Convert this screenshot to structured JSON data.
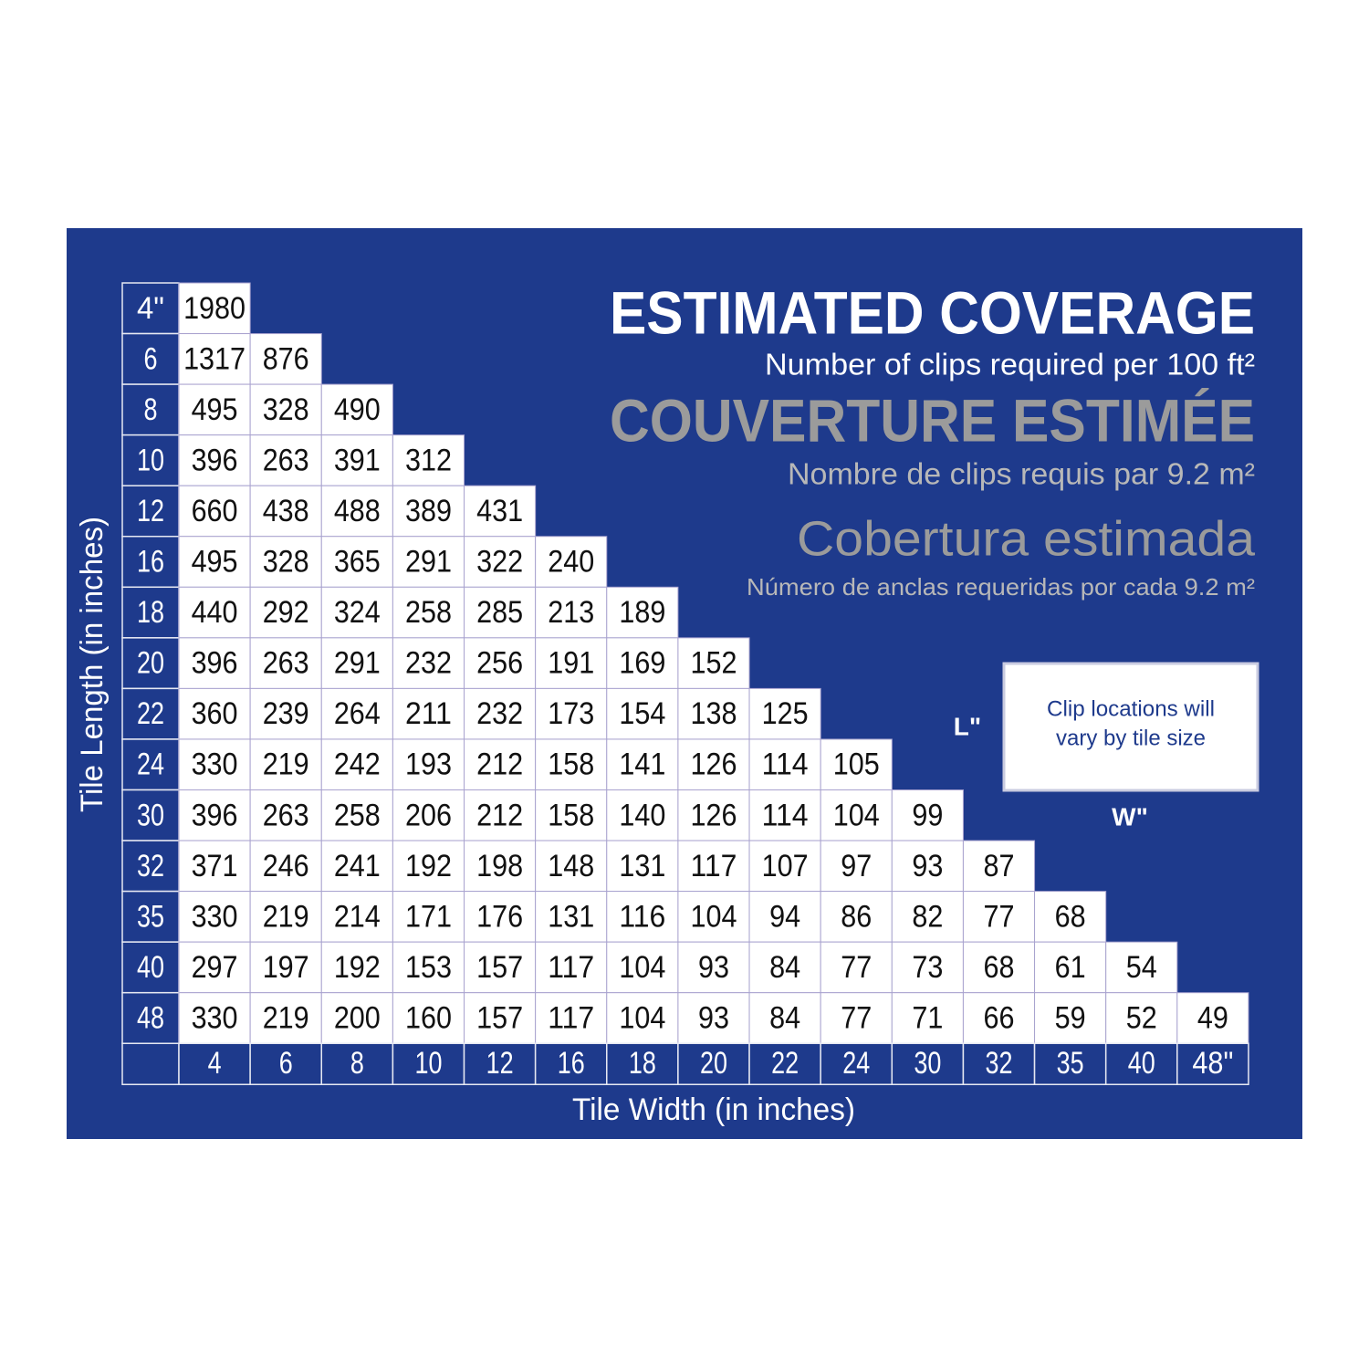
{
  "header": {
    "title": "ESTIMATED COVERAGE",
    "subtitle": "Number of clips required per 100 ft²",
    "title_fr": "COUVERTURE ESTIMÉE",
    "subtitle_fr": "Nombre de clips requis par 9.2 m²",
    "title_es": "Cobertura estimada",
    "subtitle_es": "Número  de anclas requeridas por cada 9.2 m²"
  },
  "table": {
    "row_axis_label": "Tile Length (in inches)",
    "column_axis_label": "Tile Width (in inches)",
    "columns": [
      "4",
      "6",
      "8",
      "10",
      "12",
      "16",
      "18",
      "20",
      "22",
      "24",
      "30",
      "32",
      "35",
      "40",
      "48\""
    ],
    "rows": [
      {
        "label": "4\"",
        "values": [
          1980
        ]
      },
      {
        "label": "6",
        "values": [
          1317,
          876
        ]
      },
      {
        "label": "8",
        "values": [
          495,
          328,
          490
        ]
      },
      {
        "label": "10",
        "values": [
          396,
          263,
          391,
          312
        ]
      },
      {
        "label": "12",
        "values": [
          660,
          438,
          488,
          389,
          431
        ]
      },
      {
        "label": "16",
        "values": [
          495,
          328,
          365,
          291,
          322,
          240
        ]
      },
      {
        "label": "18",
        "values": [
          440,
          292,
          324,
          258,
          285,
          213,
          189
        ]
      },
      {
        "label": "20",
        "values": [
          396,
          263,
          291,
          232,
          256,
          191,
          169,
          152
        ]
      },
      {
        "label": "22",
        "values": [
          360,
          239,
          264,
          211,
          232,
          173,
          154,
          138,
          125
        ]
      },
      {
        "label": "24",
        "values": [
          330,
          219,
          242,
          193,
          212,
          158,
          141,
          126,
          114,
          105
        ]
      },
      {
        "label": "30",
        "values": [
          396,
          263,
          258,
          206,
          212,
          158,
          140,
          126,
          114,
          104,
          99
        ]
      },
      {
        "label": "32",
        "values": [
          371,
          246,
          241,
          192,
          198,
          148,
          131,
          117,
          107,
          97,
          93,
          87
        ]
      },
      {
        "label": "35",
        "values": [
          330,
          219,
          214,
          171,
          176,
          131,
          116,
          104,
          94,
          86,
          82,
          77,
          68
        ]
      },
      {
        "label": "40",
        "values": [
          297,
          197,
          192,
          153,
          157,
          117,
          104,
          93,
          84,
          77,
          73,
          68,
          61,
          54
        ]
      },
      {
        "label": "48",
        "values": [
          330,
          219,
          200,
          160,
          157,
          117,
          104,
          93,
          84,
          77,
          71,
          66,
          59,
          52,
          49
        ]
      }
    ]
  },
  "diagram": {
    "length_label": "L\"",
    "width_label": "W\"",
    "note_lines": [
      "Clip locations will",
      "vary by tile size"
    ]
  }
}
